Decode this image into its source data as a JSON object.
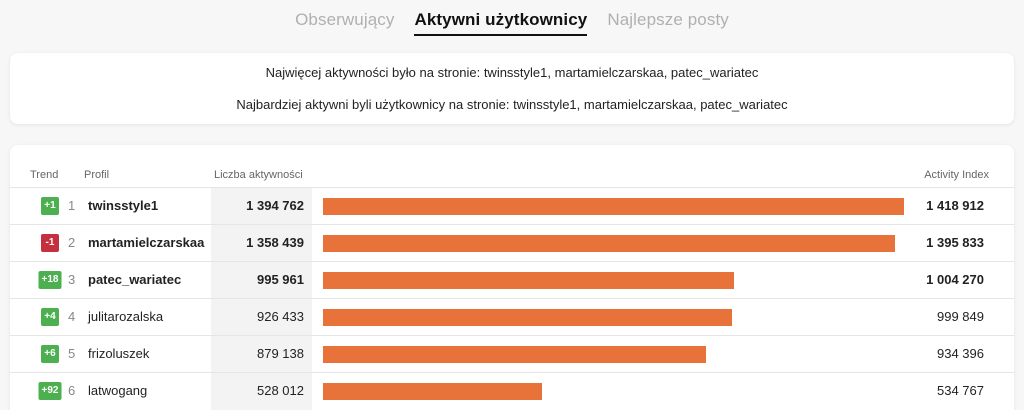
{
  "tabs": [
    {
      "label": "Obserwujący",
      "active": false
    },
    {
      "label": "Aktywni użytkownicy",
      "active": true
    },
    {
      "label": "Najlepsze posty",
      "active": false
    }
  ],
  "summary": {
    "line1": "Najwięcej aktywności było na stronie: twinsstyle1, martamielczarskaa, patec_wariatec",
    "line2": "Najbardziej aktywni byli użytkownicy na stronie: twinsstyle1, martamielczarskaa, patec_wariatec"
  },
  "table": {
    "headers": {
      "trend": "Trend",
      "profil": "Profil",
      "liczba": "Liczba aktywności",
      "index": "Activity Index"
    },
    "colors": {
      "up": "#4caf50",
      "down": "#c62f3e",
      "bar": "#e8733a"
    },
    "rows": [
      {
        "trend": "+1",
        "direction": "up",
        "rank": "1",
        "name": "twinsstyle1",
        "count": "1 394 762",
        "index": "1 418 912",
        "index_value": 1418912,
        "bold": true
      },
      {
        "trend": "-1",
        "direction": "down",
        "rank": "2",
        "name": "martamielczarskaa",
        "count": "1 358 439",
        "index": "1 395 833",
        "index_value": 1395833,
        "bold": true
      },
      {
        "trend": "+18",
        "direction": "up",
        "rank": "3",
        "name": "patec_wariatec",
        "count": "995 961",
        "index": "1 004 270",
        "index_value": 1004270,
        "bold": true
      },
      {
        "trend": "+4",
        "direction": "up",
        "rank": "4",
        "name": "julitarozalska",
        "count": "926 433",
        "index": "999 849",
        "index_value": 999849,
        "bold": false
      },
      {
        "trend": "+6",
        "direction": "up",
        "rank": "5",
        "name": "frizoluszek",
        "count": "879 138",
        "index": "934 396",
        "index_value": 934396,
        "bold": false
      },
      {
        "trend": "+92",
        "direction": "up",
        "rank": "6",
        "name": "latwogang",
        "count": "528 012",
        "index": "534 767",
        "index_value": 534767,
        "bold": false
      }
    ]
  }
}
